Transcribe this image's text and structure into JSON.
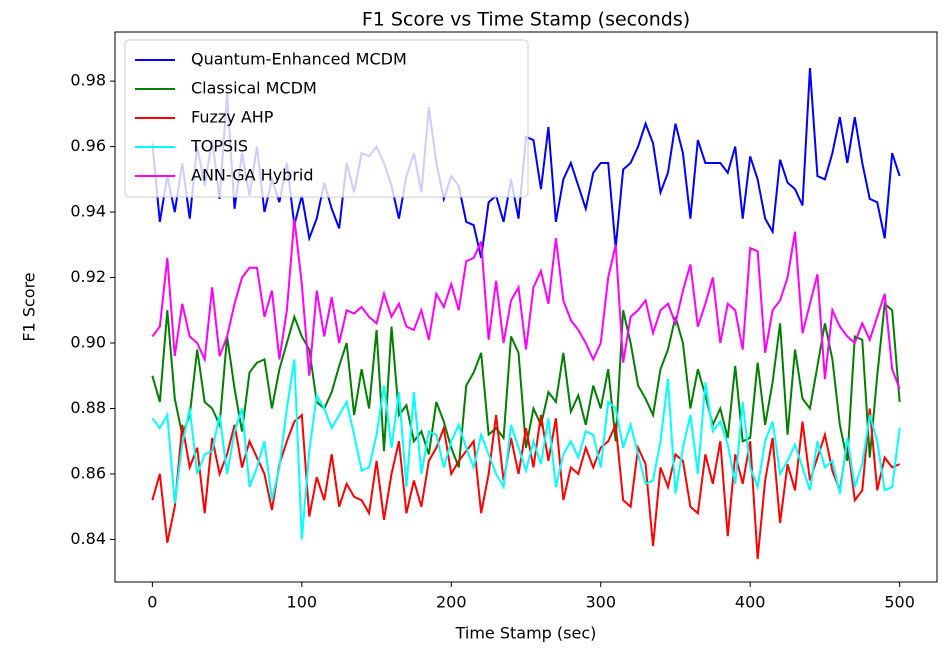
{
  "chart_data": {
    "type": "line",
    "title": "F1 Score vs Time Stamp (seconds)",
    "xlabel": "Time Stamp (sec)",
    "ylabel": "F1 Score",
    "x": [
      0,
      5,
      10,
      15,
      20,
      25,
      30,
      35,
      40,
      45,
      50,
      55,
      60,
      65,
      70,
      75,
      80,
      85,
      90,
      95,
      100,
      105,
      110,
      115,
      120,
      125,
      130,
      135,
      140,
      145,
      150,
      155,
      160,
      165,
      170,
      175,
      180,
      185,
      190,
      195,
      200,
      205,
      210,
      215,
      220,
      225,
      230,
      235,
      240,
      245,
      250,
      255,
      260,
      265,
      270,
      275,
      280,
      285,
      290,
      295,
      300,
      305,
      310,
      315,
      320,
      325,
      330,
      335,
      340,
      345,
      350,
      355,
      360,
      365,
      370,
      375,
      380,
      385,
      390,
      395,
      400,
      405,
      410,
      415,
      420,
      425,
      430,
      435,
      440,
      445,
      450,
      455,
      460,
      465,
      470,
      475,
      480,
      485,
      490,
      495,
      500
    ],
    "xlim": [
      -25,
      525
    ],
    "xticks": [
      0,
      100,
      200,
      300,
      400,
      500
    ],
    "ylim": [
      0.827,
      0.995
    ],
    "yticks": [
      0.84,
      0.86,
      0.88,
      {
        "value": 0.9,
        "label": "0.90"
      },
      0.92,
      0.94,
      0.96,
      0.98
    ],
    "legend": "upper left",
    "series": [
      {
        "name": "Quantum-Enhanced MCDM",
        "color": "#0000ff",
        "values": [
          0.961,
          0.937,
          0.951,
          0.94,
          0.955,
          0.938,
          0.96,
          0.948,
          0.962,
          0.944,
          0.976,
          0.941,
          0.958,
          0.945,
          0.96,
          0.94,
          0.95,
          0.943,
          0.955,
          0.936,
          0.945,
          0.932,
          0.938,
          0.949,
          0.941,
          0.935,
          0.955,
          0.946,
          0.958,
          0.957,
          0.96,
          0.955,
          0.948,
          0.938,
          0.951,
          0.958,
          0.946,
          0.972,
          0.955,
          0.944,
          0.951,
          0.948,
          0.937,
          0.936,
          0.926,
          0.943,
          0.945,
          0.937,
          0.95,
          0.938,
          0.963,
          0.962,
          0.947,
          0.966,
          0.937,
          0.95,
          0.955,
          0.948,
          0.941,
          0.952,
          0.955,
          0.955,
          0.929,
          0.953,
          0.955,
          0.96,
          0.967,
          0.961,
          0.946,
          0.952,
          0.967,
          0.958,
          0.938,
          0.962,
          0.955,
          0.955,
          0.955,
          0.952,
          0.96,
          0.938,
          0.957,
          0.95,
          0.938,
          0.934,
          0.956,
          0.949,
          0.947,
          0.942,
          0.984,
          0.951,
          0.95,
          0.958,
          0.969,
          0.955,
          0.969,
          0.955,
          0.944,
          0.943,
          0.932,
          0.958,
          0.951
        ]
      },
      {
        "name": "Classical MCDM",
        "color": "#008000",
        "values": [
          0.89,
          0.882,
          0.91,
          0.883,
          0.872,
          0.878,
          0.898,
          0.882,
          0.88,
          0.875,
          0.902,
          0.886,
          0.873,
          0.891,
          0.894,
          0.895,
          0.88,
          0.892,
          0.9,
          0.908,
          0.902,
          0.898,
          0.882,
          0.88,
          0.885,
          0.893,
          0.9,
          0.878,
          0.892,
          0.88,
          0.904,
          0.867,
          0.905,
          0.878,
          0.881,
          0.87,
          0.873,
          0.866,
          0.882,
          0.876,
          0.868,
          0.862,
          0.887,
          0.891,
          0.897,
          0.872,
          0.874,
          0.871,
          0.902,
          0.897,
          0.868,
          0.88,
          0.875,
          0.885,
          0.882,
          0.897,
          0.879,
          0.884,
          0.875,
          0.887,
          0.88,
          0.892,
          0.87,
          0.91,
          0.9,
          0.887,
          0.883,
          0.878,
          0.892,
          0.898,
          0.908,
          0.9,
          0.88,
          0.892,
          0.884,
          0.875,
          0.88,
          0.871,
          0.893,
          0.87,
          0.871,
          0.894,
          0.875,
          0.888,
          0.906,
          0.872,
          0.898,
          0.883,
          0.88,
          0.893,
          0.906,
          0.895,
          0.875,
          0.864,
          0.902,
          0.901,
          0.865,
          0.89,
          0.912,
          0.91,
          0.882
        ]
      },
      {
        "name": "Fuzzy AHP",
        "color": "#ff0000",
        "values": [
          0.852,
          0.86,
          0.839,
          0.85,
          0.875,
          0.862,
          0.868,
          0.848,
          0.871,
          0.86,
          0.866,
          0.875,
          0.862,
          0.87,
          0.865,
          0.86,
          0.849,
          0.863,
          0.87,
          0.876,
          0.878,
          0.847,
          0.859,
          0.852,
          0.866,
          0.85,
          0.857,
          0.853,
          0.852,
          0.848,
          0.864,
          0.846,
          0.86,
          0.87,
          0.848,
          0.858,
          0.85,
          0.864,
          0.868,
          0.874,
          0.86,
          0.864,
          0.867,
          0.87,
          0.848,
          0.86,
          0.878,
          0.858,
          0.871,
          0.86,
          0.874,
          0.862,
          0.878,
          0.864,
          0.877,
          0.852,
          0.862,
          0.86,
          0.868,
          0.862,
          0.868,
          0.87,
          0.875,
          0.852,
          0.85,
          0.868,
          0.863,
          0.838,
          0.862,
          0.856,
          0.866,
          0.864,
          0.85,
          0.848,
          0.866,
          0.857,
          0.87,
          0.841,
          0.866,
          0.857,
          0.87,
          0.834,
          0.858,
          0.871,
          0.845,
          0.863,
          0.855,
          0.876,
          0.858,
          0.865,
          0.872,
          0.861,
          0.855,
          0.87,
          0.852,
          0.855,
          0.88,
          0.855,
          0.865,
          0.862,
          0.863
        ]
      },
      {
        "name": "TOPSIS",
        "color": "#00ffff",
        "values": [
          0.877,
          0.874,
          0.878,
          0.851,
          0.869,
          0.88,
          0.86,
          0.866,
          0.867,
          0.878,
          0.86,
          0.873,
          0.88,
          0.856,
          0.862,
          0.87,
          0.852,
          0.862,
          0.88,
          0.895,
          0.84,
          0.867,
          0.884,
          0.88,
          0.874,
          0.878,
          0.882,
          0.872,
          0.861,
          0.862,
          0.872,
          0.887,
          0.868,
          0.885,
          0.856,
          0.885,
          0.86,
          0.873,
          0.872,
          0.862,
          0.87,
          0.875,
          0.868,
          0.862,
          0.872,
          0.866,
          0.86,
          0.856,
          0.875,
          0.868,
          0.861,
          0.87,
          0.863,
          0.877,
          0.856,
          0.866,
          0.87,
          0.865,
          0.873,
          0.872,
          0.862,
          0.882,
          0.88,
          0.868,
          0.875,
          0.866,
          0.857,
          0.858,
          0.87,
          0.889,
          0.854,
          0.868,
          0.878,
          0.86,
          0.888,
          0.873,
          0.876,
          0.869,
          0.857,
          0.882,
          0.862,
          0.856,
          0.87,
          0.876,
          0.86,
          0.864,
          0.869,
          0.862,
          0.855,
          0.87,
          0.862,
          0.864,
          0.854,
          0.871,
          0.856,
          0.863,
          0.878,
          0.87,
          0.855,
          0.856,
          0.874
        ]
      },
      {
        "name": "ANN-GA Hybrid",
        "color": "#ff00ff",
        "values": [
          0.902,
          0.905,
          0.926,
          0.896,
          0.912,
          0.902,
          0.9,
          0.895,
          0.917,
          0.896,
          0.902,
          0.912,
          0.92,
          0.923,
          0.923,
          0.908,
          0.916,
          0.895,
          0.91,
          0.938,
          0.918,
          0.89,
          0.916,
          0.902,
          0.914,
          0.9,
          0.91,
          0.909,
          0.911,
          0.908,
          0.906,
          0.915,
          0.908,
          0.912,
          0.905,
          0.904,
          0.91,
          0.901,
          0.915,
          0.911,
          0.918,
          0.91,
          0.925,
          0.926,
          0.931,
          0.901,
          0.919,
          0.9,
          0.913,
          0.917,
          0.898,
          0.917,
          0.922,
          0.912,
          0.932,
          0.913,
          0.907,
          0.904,
          0.9,
          0.895,
          0.9,
          0.92,
          0.93,
          0.894,
          0.908,
          0.91,
          0.913,
          0.903,
          0.91,
          0.912,
          0.906,
          0.916,
          0.924,
          0.905,
          0.912,
          0.92,
          0.9,
          0.912,
          0.91,
          0.898,
          0.929,
          0.928,
          0.897,
          0.91,
          0.913,
          0.92,
          0.934,
          0.903,
          0.912,
          0.921,
          0.889,
          0.91,
          0.905,
          0.902,
          0.9,
          0.906,
          0.901,
          0.908,
          0.915,
          0.892,
          0.886
        ]
      }
    ]
  }
}
